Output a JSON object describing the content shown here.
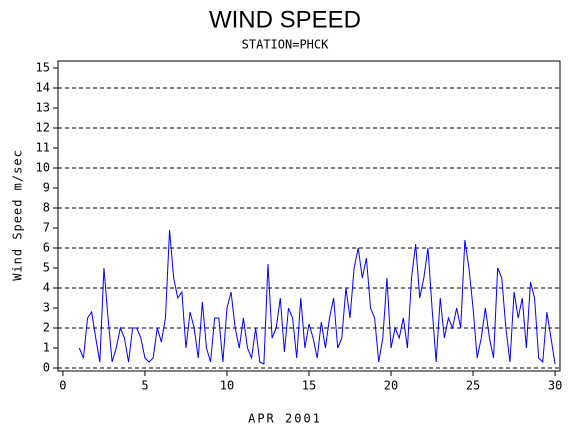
{
  "chart_data": {
    "type": "line",
    "title": "WIND SPEED",
    "subtitle": "STATION=PHCK",
    "y_label": "Wind Speed m/sec",
    "x_label": "APR 2001",
    "xlim": [
      -0.3,
      30.3
    ],
    "xticks": [
      0,
      5,
      10,
      15,
      20,
      25,
      30
    ],
    "ylim": [
      -0.15,
      15.35
    ],
    "yticks": [
      0,
      1,
      2,
      3,
      4,
      5,
      6,
      7,
      8,
      9,
      10,
      11,
      12,
      13,
      14,
      15
    ],
    "reference_lines": [
      0,
      2,
      4,
      6,
      8,
      10,
      12,
      14
    ],
    "x": [
      1,
      1.25,
      1.5,
      1.75,
      2,
      2.25,
      2.5,
      2.75,
      3,
      3.25,
      3.5,
      3.75,
      4,
      4.25,
      4.5,
      4.75,
      5,
      5.25,
      5.5,
      5.75,
      6,
      6.25,
      6.5,
      6.75,
      7,
      7.25,
      7.5,
      7.75,
      8,
      8.25,
      8.5,
      8.75,
      9,
      9.25,
      9.5,
      9.75,
      10,
      10.25,
      10.5,
      10.75,
      11,
      11.25,
      11.5,
      11.75,
      12,
      12.25,
      12.5,
      12.75,
      13,
      13.25,
      13.5,
      13.75,
      14,
      14.25,
      14.5,
      14.75,
      15,
      15.25,
      15.5,
      15.75,
      16,
      16.25,
      16.5,
      16.75,
      17,
      17.25,
      17.5,
      17.75,
      18,
      18.25,
      18.5,
      18.75,
      19,
      19.25,
      19.5,
      19.75,
      20,
      20.25,
      20.5,
      20.75,
      21,
      21.25,
      21.5,
      21.75,
      22,
      22.25,
      22.5,
      22.75,
      23,
      23.25,
      23.5,
      23.75,
      24,
      24.25,
      24.5,
      24.75,
      25,
      25.25,
      25.5,
      25.75,
      26,
      26.25,
      26.5,
      26.75,
      27,
      27.25,
      27.5,
      27.75,
      28,
      28.25,
      28.5,
      28.75,
      29,
      29.25,
      29.5,
      29.75,
      30
    ],
    "series": [
      {
        "color": "#0000ff",
        "values": [
          1.0,
          0.5,
          2.5,
          2.8,
          1.5,
          0.3,
          5.0,
          2.5,
          0.3,
          1.0,
          2.0,
          1.5,
          0.3,
          2.0,
          2.0,
          1.5,
          0.5,
          0.3,
          0.5,
          2.0,
          1.3,
          2.5,
          6.9,
          4.5,
          3.5,
          3.8,
          1.0,
          2.8,
          2.0,
          0.5,
          3.3,
          1.0,
          0.3,
          2.5,
          2.5,
          0.3,
          3.0,
          3.8,
          2.0,
          1.0,
          2.5,
          1.0,
          0.5,
          2.0,
          0.3,
          0.2,
          5.2,
          1.5,
          2.0,
          3.5,
          0.8,
          3.0,
          2.5,
          0.5,
          3.5,
          1.0,
          2.2,
          1.5,
          0.5,
          2.3,
          1.0,
          2.5,
          3.5,
          1.0,
          1.5,
          4.0,
          2.5,
          5.0,
          6.0,
          4.5,
          5.5,
          3.0,
          2.5,
          0.3,
          1.5,
          4.5,
          1.0,
          2.0,
          1.5,
          2.5,
          1.0,
          4.5,
          6.2,
          3.5,
          4.5,
          6.0,
          3.0,
          0.3,
          3.5,
          1.5,
          2.5,
          2.0,
          3.0,
          2.0,
          6.4,
          5.0,
          3.0,
          0.5,
          1.5,
          3.0,
          1.5,
          0.5,
          5.0,
          4.5,
          2.0,
          0.3,
          3.8,
          2.5,
          3.5,
          1.0,
          4.3,
          3.5,
          0.5,
          0.3,
          2.8,
          1.5,
          0.2
        ]
      }
    ]
  }
}
